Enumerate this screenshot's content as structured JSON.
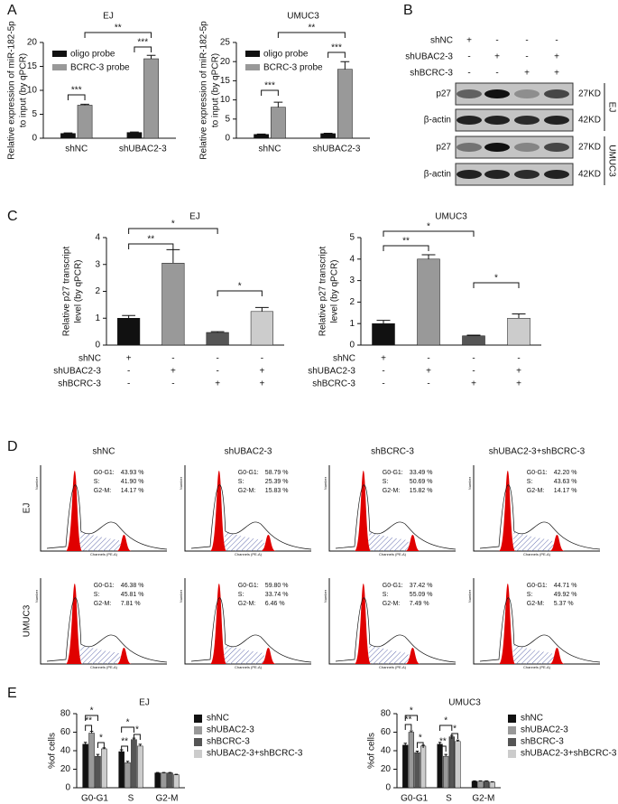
{
  "panel_letters": [
    "A",
    "B",
    "C",
    "D",
    "E"
  ],
  "chart_data": [
    {
      "type": "bar",
      "title": "EJ",
      "ylabel": [
        "Relative expression of miR-182-5p",
        "to input (by qPCR)"
      ],
      "categories": [
        "shNC",
        "shUBAC2-3"
      ],
      "series": [
        {
          "name": "oligo probe",
          "color": "#111111",
          "values": [
            1.0,
            1.2
          ],
          "errors": [
            0.1,
            0.1
          ]
        },
        {
          "name": "BCRC-3 probe",
          "color": "#999999",
          "values": [
            6.9,
            16.6
          ],
          "errors": [
            0.2,
            0.7
          ]
        }
      ],
      "ylim": [
        0,
        20
      ],
      "yticks": [
        0,
        5,
        10,
        15,
        20
      ],
      "annotations": [
        "***",
        "***",
        "**"
      ]
    },
    {
      "type": "bar",
      "title": "UMUC3",
      "ylabel": [
        "Relative expression of miR-182-5p",
        "to input (by qPCR)"
      ],
      "categories": [
        "shNC",
        "shUBAC2-3"
      ],
      "series": [
        {
          "name": "oligo probe",
          "color": "#111111",
          "values": [
            1.0,
            1.2
          ],
          "errors": [
            0.1,
            0.1
          ]
        },
        {
          "name": "BCRC-3 probe",
          "color": "#999999",
          "values": [
            8.1,
            18.0
          ],
          "errors": [
            1.3,
            2.0
          ]
        }
      ],
      "ylim": [
        0,
        25
      ],
      "yticks": [
        0,
        5,
        10,
        15,
        20,
        25
      ],
      "annotations": [
        "***",
        "***",
        "**"
      ]
    },
    {
      "type": "bar",
      "title": "EJ",
      "ylabel": [
        "Relative p27 transcript",
        "level (by qPCR)"
      ],
      "values": [
        1.0,
        3.05,
        0.47,
        1.25
      ],
      "errors": [
        0.1,
        0.5,
        0.03,
        0.15
      ],
      "colors": [
        "#111111",
        "#999999",
        "#555555",
        "#cccccc"
      ],
      "ylim": [
        0,
        4
      ],
      "yticks": [
        0,
        1,
        2,
        3,
        4
      ],
      "conditions": [
        {
          "label": "shNC",
          "signs": [
            "+",
            "-",
            "-",
            "-"
          ]
        },
        {
          "label": "shUBAC2-3",
          "signs": [
            "-",
            "+",
            "-",
            "+"
          ]
        },
        {
          "label": "shBCRC-3",
          "signs": [
            "-",
            "-",
            "+",
            "+"
          ]
        }
      ],
      "annotations": [
        "**",
        "*",
        "*"
      ]
    },
    {
      "type": "bar",
      "title": "UMUC3",
      "ylabel": [
        "Relative p27 transcript",
        "level (by qPCR)"
      ],
      "values": [
        1.0,
        4.0,
        0.43,
        1.25
      ],
      "errors": [
        0.15,
        0.2,
        0.03,
        0.2
      ],
      "colors": [
        "#111111",
        "#999999",
        "#555555",
        "#cccccc"
      ],
      "ylim": [
        0,
        5
      ],
      "yticks": [
        0,
        1,
        2,
        3,
        4,
        5
      ],
      "conditions": [
        {
          "label": "shNC",
          "signs": [
            "+",
            "-",
            "-",
            "-"
          ]
        },
        {
          "label": "shUBAC2-3",
          "signs": [
            "-",
            "+",
            "-",
            "+"
          ]
        },
        {
          "label": "shBCRC-3",
          "signs": [
            "-",
            "-",
            "+",
            "+"
          ]
        }
      ],
      "annotations": [
        "**",
        "*",
        "*"
      ]
    },
    {
      "type": "bar",
      "title": "EJ",
      "ylabel": [
        "%of cells"
      ],
      "categories": [
        "G0-G1",
        "S",
        "G2-M"
      ],
      "series": [
        {
          "name": "shNC",
          "color": "#111111",
          "values": [
            47,
            39,
            16
          ],
          "errors": [
            2,
            2,
            0.5
          ]
        },
        {
          "name": "shUBAC2-3",
          "color": "#999999",
          "values": [
            59,
            27,
            16
          ],
          "errors": [
            2,
            1.5,
            0.5
          ]
        },
        {
          "name": "shBCRC-3",
          "color": "#555555",
          "values": [
            34,
            52,
            16
          ],
          "errors": [
            2,
            1.5,
            0.5
          ]
        },
        {
          "name": "shUBAC2-3+shBCRC-3",
          "color": "#cccccc",
          "values": [
            42,
            45,
            14
          ],
          "errors": [
            1,
            2,
            0.5
          ]
        }
      ],
      "ylim": [
        0,
        80
      ],
      "yticks": [
        0,
        20,
        40,
        60,
        80
      ],
      "annotations": [
        "**",
        "*",
        "*",
        "**",
        "*",
        "*"
      ]
    },
    {
      "type": "bar",
      "title": "UMUC3",
      "ylabel": [
        "%of cells"
      ],
      "categories": [
        "G0-G1",
        "S",
        "G2-M"
      ],
      "series": [
        {
          "name": "shNC",
          "color": "#111111",
          "values": [
            46,
            47,
            7
          ],
          "errors": [
            2,
            2,
            0.5
          ]
        },
        {
          "name": "shUBAC2-3",
          "color": "#999999",
          "values": [
            60,
            34,
            7
          ],
          "errors": [
            1.5,
            2,
            0.5
          ]
        },
        {
          "name": "shBCRC-3",
          "color": "#555555",
          "values": [
            38,
            55,
            7
          ],
          "errors": [
            1.5,
            1.5,
            0.5
          ]
        },
        {
          "name": "shUBAC2-3+shBCRC-3",
          "color": "#cccccc",
          "values": [
            45,
            50,
            6
          ],
          "errors": [
            1,
            1.5,
            0.5
          ]
        }
      ],
      "ylim": [
        0,
        80
      ],
      "yticks": [
        0,
        20,
        40,
        60,
        80
      ],
      "annotations": [
        "*",
        "**",
        "*",
        "*",
        "**",
        "*"
      ]
    }
  ],
  "blot": {
    "conditions": [
      {
        "label": "shNC",
        "signs": [
          "+",
          "-",
          "-",
          "-"
        ]
      },
      {
        "label": "shUBAC2-3",
        "signs": [
          "-",
          "+",
          "-",
          "+"
        ]
      },
      {
        "label": "shBCRC-3",
        "signs": [
          "-",
          "-",
          "+",
          "+"
        ]
      }
    ],
    "rows": [
      "p27",
      "β-actin",
      "p27",
      "β-actin"
    ],
    "sizes": [
      "27KD",
      "42KD",
      "27KD",
      "42KD"
    ],
    "cell_lines": [
      "EJ",
      "UMUC3"
    ]
  },
  "flow": {
    "columns": [
      "shNC",
      "shUBAC2-3",
      "shBCRC-3",
      "shUBAC2-3+shBCRC-3"
    ],
    "stat_labels": [
      "G0-G1:",
      "S:",
      "G2-M:"
    ],
    "y_axis": "Number",
    "x_axis": "Channels (PE-A)",
    "rows": [
      {
        "label": "EJ",
        "plots": [
          [
            "43.93 %",
            "41.90 %",
            "14.17 %"
          ],
          [
            "58.79 %",
            "25.39 %",
            "15.83 %"
          ],
          [
            "33.49 %",
            "50.69 %",
            "15.82 %"
          ],
          [
            "42.20 %",
            "43.63 %",
            "14.17 %"
          ]
        ]
      },
      {
        "label": "UMUC3",
        "plots": [
          [
            "46.38 %",
            "45.81 %",
            "7.81 %"
          ],
          [
            "59.80 %",
            "33.74 %",
            "6.46 %"
          ],
          [
            "37.42 %",
            "55.09 %",
            "7.49 %"
          ],
          [
            "44.71 %",
            "49.92 %",
            "5.37 %"
          ]
        ]
      }
    ]
  }
}
